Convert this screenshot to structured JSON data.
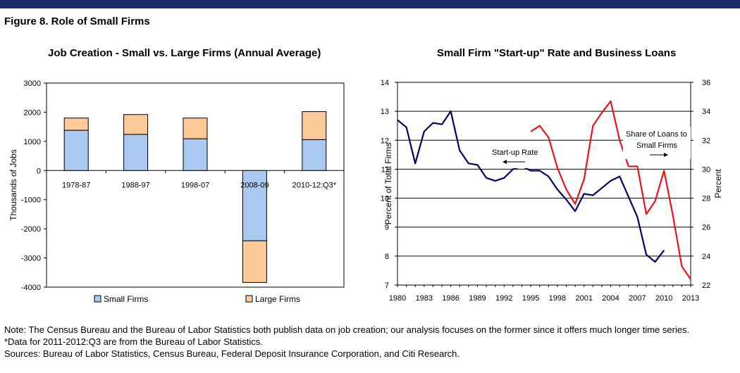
{
  "figure_title": "Figure 8. Role of Small Firms",
  "notes": [
    "Note: The Census Bureau and the Bureau of Labor Statistics both publish data on job creation; our analysis focuses on the former since it offers much longer time series.",
    "*Data for 2011-2012:Q3 are from the Bureau of Labor Statistics.",
    "Sources: Bureau of Labor Statistics, Census Bureau, Federal Deposit Insurance Corporation, and Citi Research."
  ],
  "colors": {
    "header_rule": "#1b2a6b",
    "small_firms": "#a9c9f0",
    "large_firms": "#fcc999",
    "startup_line": "#000066",
    "loans_line": "#e8141b"
  },
  "chart_data": [
    {
      "type": "bar",
      "stacked": true,
      "title": "Job Creation - Small vs. Large Firms (Annual Average)",
      "categories": [
        "1978-87",
        "1988-97",
        "1998-07",
        "2008-09",
        "2010-12:Q3*"
      ],
      "series": [
        {
          "name": "Small Firms",
          "values": [
            1380,
            1240,
            1090,
            -2410,
            1060
          ]
        },
        {
          "name": "Large Firms",
          "values": [
            420,
            680,
            710,
            -1430,
            960
          ]
        }
      ],
      "xlabel": "",
      "ylabel": "Thousands of Jobs",
      "ylim": [
        -4000,
        3000
      ],
      "yticks": [
        3000,
        2000,
        1000,
        0,
        -1000,
        -2000,
        -3000,
        -4000
      ],
      "grid": false,
      "legend": "bottom"
    },
    {
      "type": "line",
      "title": "Small Firm \"Start-up\" Rate and Business Loans",
      "xlim": [
        1980,
        2013
      ],
      "xticks": [
        1980,
        1983,
        1986,
        1989,
        1992,
        1995,
        1998,
        2001,
        2004,
        2007,
        2010,
        2013
      ],
      "ylabel_left": "Percent of Total Firms",
      "ylim_left": [
        7,
        14
      ],
      "yticks_left": [
        7,
        8,
        9,
        10,
        11,
        12,
        13,
        14
      ],
      "ylabel_right": "Percent",
      "ylim_right": [
        22,
        36
      ],
      "yticks_right": [
        22,
        24,
        26,
        28,
        30,
        32,
        34,
        36
      ],
      "grid": true,
      "series": [
        {
          "name": "Start-up Rate",
          "axis": "left",
          "x": [
            1980,
            1981,
            1982,
            1983,
            1984,
            1985,
            1986,
            1987,
            1988,
            1989,
            1990,
            1991,
            1992,
            1993,
            1994,
            1995,
            1996,
            1997,
            1998,
            1999,
            2000,
            2001,
            2002,
            2003,
            2004,
            2005,
            2006,
            2007,
            2008,
            2009,
            2010
          ],
          "y": [
            12.7,
            12.45,
            11.2,
            12.3,
            12.6,
            12.55,
            13.0,
            11.65,
            11.2,
            11.15,
            10.7,
            10.6,
            10.7,
            11.0,
            11.1,
            10.95,
            10.95,
            10.75,
            10.3,
            9.95,
            9.55,
            10.15,
            10.1,
            10.35,
            10.6,
            10.75,
            10.05,
            9.35,
            8.05,
            7.8,
            8.2
          ]
        },
        {
          "name": "Share of Loans to Small Firms",
          "axis": "right",
          "x": [
            1995,
            1996,
            1997,
            1998,
            1999,
            2000,
            2001,
            2002,
            2003,
            2004,
            2005,
            2006,
            2007,
            2008,
            2009,
            2010,
            2011,
            2012,
            2013
          ],
          "y": [
            32.6,
            33.0,
            32.2,
            30.1,
            28.6,
            27.6,
            29.3,
            33.0,
            33.9,
            34.7,
            32.0,
            30.2,
            30.2,
            26.9,
            27.8,
            29.9,
            26.8,
            23.3,
            22.4
          ]
        }
      ],
      "annotations": [
        {
          "text": "Start-up Rate",
          "series": "Start-up Rate",
          "arrow": "left"
        },
        {
          "text": "Share of Loans to",
          "series": "Share of Loans to Small Firms"
        },
        {
          "text": "Small Firms",
          "series": "Share of Loans to Small Firms",
          "arrow": "right"
        }
      ]
    }
  ]
}
